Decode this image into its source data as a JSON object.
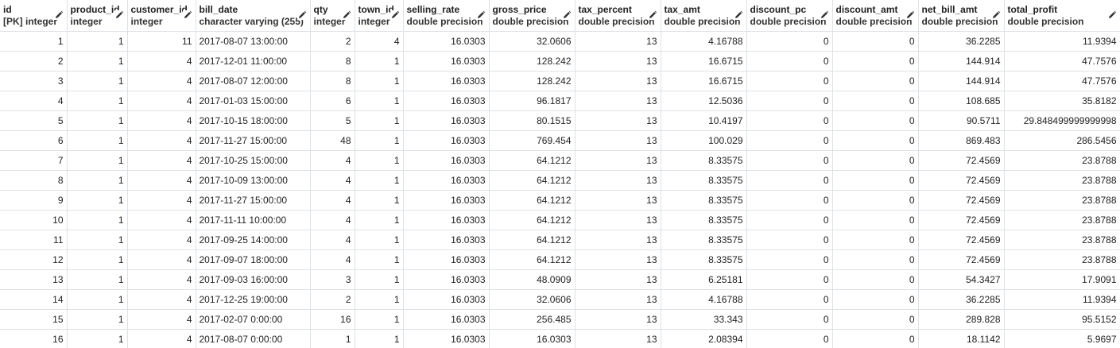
{
  "columns": [
    {
      "name": "id",
      "type": "[PK] integer",
      "align": "right"
    },
    {
      "name": "product_id",
      "type": "integer",
      "align": "right"
    },
    {
      "name": "customer_id",
      "type": "integer",
      "align": "right"
    },
    {
      "name": "bill_date",
      "type": "character varying (255)",
      "align": "left"
    },
    {
      "name": "qty",
      "type": "integer",
      "align": "right"
    },
    {
      "name": "town_id",
      "type": "integer",
      "align": "right"
    },
    {
      "name": "selling_rate",
      "type": "double precision",
      "align": "right"
    },
    {
      "name": "gross_price",
      "type": "double precision",
      "align": "right"
    },
    {
      "name": "tax_percent",
      "type": "double precision",
      "align": "right"
    },
    {
      "name": "tax_amt",
      "type": "double precision",
      "align": "right"
    },
    {
      "name": "discount_pc",
      "type": "double precision",
      "align": "right"
    },
    {
      "name": "discount_amt",
      "type": "double precision",
      "align": "right"
    },
    {
      "name": "net_bill_amt",
      "type": "double precision",
      "align": "right"
    },
    {
      "name": "total_profit",
      "type": "double precision",
      "align": "right"
    }
  ],
  "rows": [
    [
      "1",
      "1",
      "11",
      "2017-08-07 13:00:00",
      "2",
      "4",
      "16.0303",
      "32.0606",
      "13",
      "4.16788",
      "0",
      "0",
      "36.2285",
      "11.9394"
    ],
    [
      "2",
      "1",
      "4",
      "2017-12-01 11:00:00",
      "8",
      "1",
      "16.0303",
      "128.242",
      "13",
      "16.6715",
      "0",
      "0",
      "144.914",
      "47.7576"
    ],
    [
      "3",
      "1",
      "4",
      "2017-08-07 12:00:00",
      "8",
      "1",
      "16.0303",
      "128.242",
      "13",
      "16.6715",
      "0",
      "0",
      "144.914",
      "47.7576"
    ],
    [
      "4",
      "1",
      "4",
      "2017-01-03 15:00:00",
      "6",
      "1",
      "16.0303",
      "96.1817",
      "13",
      "12.5036",
      "0",
      "0",
      "108.685",
      "35.8182"
    ],
    [
      "5",
      "1",
      "4",
      "2017-10-15 18:00:00",
      "5",
      "1",
      "16.0303",
      "80.1515",
      "13",
      "10.4197",
      "0",
      "0",
      "90.5711",
      "29.848499999999998"
    ],
    [
      "6",
      "1",
      "4",
      "2017-11-27 15:00:00",
      "48",
      "1",
      "16.0303",
      "769.454",
      "13",
      "100.029",
      "0",
      "0",
      "869.483",
      "286.5456"
    ],
    [
      "7",
      "1",
      "4",
      "2017-10-25 15:00:00",
      "4",
      "1",
      "16.0303",
      "64.1212",
      "13",
      "8.33575",
      "0",
      "0",
      "72.4569",
      "23.8788"
    ],
    [
      "8",
      "1",
      "4",
      "2017-10-09 13:00:00",
      "4",
      "1",
      "16.0303",
      "64.1212",
      "13",
      "8.33575",
      "0",
      "0",
      "72.4569",
      "23.8788"
    ],
    [
      "9",
      "1",
      "4",
      "2017-11-27 15:00:00",
      "4",
      "1",
      "16.0303",
      "64.1212",
      "13",
      "8.33575",
      "0",
      "0",
      "72.4569",
      "23.8788"
    ],
    [
      "10",
      "1",
      "4",
      "2017-11-11 10:00:00",
      "4",
      "1",
      "16.0303",
      "64.1212",
      "13",
      "8.33575",
      "0",
      "0",
      "72.4569",
      "23.8788"
    ],
    [
      "11",
      "1",
      "4",
      "2017-09-25 14:00:00",
      "4",
      "1",
      "16.0303",
      "64.1212",
      "13",
      "8.33575",
      "0",
      "0",
      "72.4569",
      "23.8788"
    ],
    [
      "12",
      "1",
      "4",
      "2017-09-07 18:00:00",
      "4",
      "1",
      "16.0303",
      "64.1212",
      "13",
      "8.33575",
      "0",
      "0",
      "72.4569",
      "23.8788"
    ],
    [
      "13",
      "1",
      "4",
      "2017-09-03 16:00:00",
      "3",
      "1",
      "16.0303",
      "48.0909",
      "13",
      "6.25181",
      "0",
      "0",
      "54.3427",
      "17.9091"
    ],
    [
      "14",
      "1",
      "4",
      "2017-12-25 19:00:00",
      "2",
      "1",
      "16.0303",
      "32.0606",
      "13",
      "4.16788",
      "0",
      "0",
      "36.2285",
      "11.9394"
    ],
    [
      "15",
      "1",
      "4",
      "2017-02-07 0:00:00",
      "16",
      "1",
      "16.0303",
      "256.485",
      "13",
      "33.343",
      "0",
      "0",
      "289.828",
      "95.5152"
    ],
    [
      "16",
      "1",
      "4",
      "2017-08-07 0:00:00",
      "1",
      "1",
      "16.0303",
      "16.0303",
      "13",
      "2.08394",
      "0",
      "0",
      "18.1142",
      "5.9697"
    ]
  ]
}
